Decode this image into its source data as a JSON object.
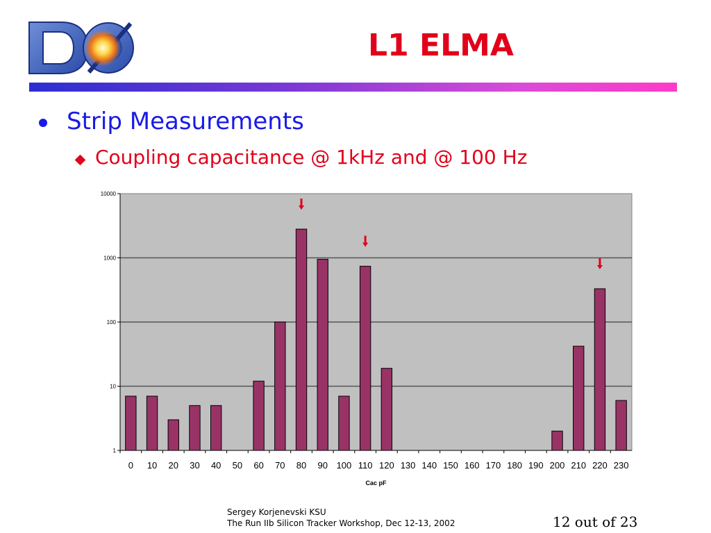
{
  "slide": {
    "title": "L1 ELMA",
    "bullet_1": "Strip Measurements",
    "bullet_2": "Coupling capacitance @ 1kHz and @ 100 Hz",
    "footer_line_1": "Sergey Korjenevski KSU",
    "footer_line_2": "The Run IIb Silicon Tracker Workshop,  Dec 12-13, 2002",
    "page_indicator": "12 out of 23"
  },
  "colors": {
    "title": "#e2001a",
    "bullet_1": "#1a1ae6",
    "bar_fill": "#993366",
    "plot_bg": "#c0c0c0",
    "arrow": "#e2001a"
  },
  "chart_data": {
    "type": "bar",
    "xlabel": "Cac pF",
    "ylabel": "",
    "y_scale": "log",
    "ylim": [
      1,
      10000
    ],
    "y_ticks": [
      "1",
      "10",
      "100",
      "1000",
      "10000"
    ],
    "grid": true,
    "categories": [
      "0",
      "10",
      "20",
      "30",
      "40",
      "50",
      "60",
      "70",
      "80",
      "90",
      "100",
      "110",
      "120",
      "130",
      "140",
      "150",
      "160",
      "170",
      "180",
      "190",
      "200",
      "210",
      "220",
      "230"
    ],
    "values": [
      7,
      7,
      3,
      5,
      5,
      0,
      12,
      100,
      2800,
      950,
      7,
      740,
      19,
      0,
      0,
      0,
      0,
      0,
      0,
      0,
      2,
      42,
      330,
      6
    ],
    "annotations": [
      {
        "type": "arrow",
        "category": "80"
      },
      {
        "type": "arrow",
        "category": "110"
      },
      {
        "type": "arrow",
        "category": "220"
      }
    ]
  }
}
